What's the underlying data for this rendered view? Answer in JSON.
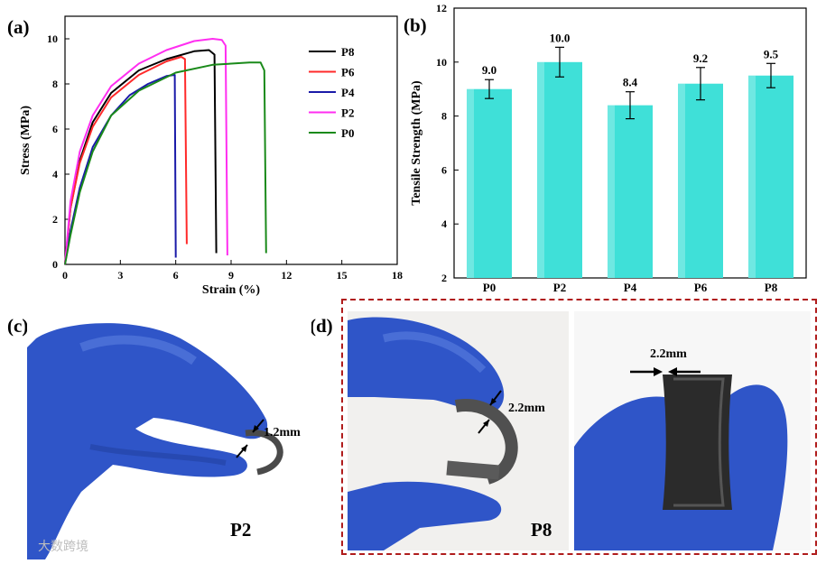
{
  "panels": {
    "a": "(a)",
    "b": "(b)",
    "c": "(c)",
    "d": "(d)"
  },
  "photos": {
    "c": {
      "thickness_label": "1.2mm",
      "sample_label": "P2"
    },
    "d": {
      "thickness_label_left": "2.2mm",
      "thickness_label_right": "2.2mm",
      "sample_label": "P8"
    }
  },
  "watermark": "大数跨境",
  "colors": {
    "P8": "#000000",
    "P6": "#ff2a2a",
    "P4": "#1a1aa8",
    "P2": "#ff2ef0",
    "P0": "#1a8a1a",
    "bar_fill": "#3fe0d8",
    "dashed_border": "#b01c1c",
    "glove": "#2f55c8"
  },
  "chart_data": [
    {
      "type": "line",
      "xlabel": "Strain (%)",
      "ylabel": "Stress (MPa)",
      "xlim": [
        0,
        18
      ],
      "ylim": [
        0,
        11
      ],
      "xticks": [
        0,
        3,
        6,
        9,
        12,
        15,
        18
      ],
      "yticks": [
        0,
        2,
        4,
        6,
        8,
        10
      ],
      "legend_position": "top-right",
      "series": [
        {
          "name": "P8",
          "x": [
            0,
            0.3,
            0.8,
            1.5,
            2.5,
            4,
            5.5,
            7,
            7.8,
            8.1,
            8.2
          ],
          "y": [
            0,
            2.5,
            4.6,
            6.3,
            7.6,
            8.6,
            9.1,
            9.45,
            9.5,
            9.3,
            0.5
          ]
        },
        {
          "name": "P6",
          "x": [
            0,
            0.3,
            0.8,
            1.5,
            2.5,
            4,
            5.5,
            6.3,
            6.5,
            6.6
          ],
          "y": [
            0,
            2.5,
            4.5,
            6.1,
            7.4,
            8.4,
            9.0,
            9.2,
            9.1,
            0.9
          ]
        },
        {
          "name": "P4",
          "x": [
            0,
            0.3,
            0.8,
            1.5,
            2.5,
            3.5,
            4.5,
            5.5,
            5.95,
            6.0
          ],
          "y": [
            0,
            1.5,
            3.4,
            5.2,
            6.6,
            7.5,
            8.0,
            8.35,
            8.4,
            0.3
          ]
        },
        {
          "name": "P2",
          "x": [
            0,
            0.3,
            0.8,
            1.5,
            2.5,
            4,
            5.5,
            7,
            8,
            8.5,
            8.7,
            8.8
          ],
          "y": [
            0,
            2.8,
            5.0,
            6.6,
            7.9,
            8.9,
            9.5,
            9.9,
            10.0,
            9.95,
            9.7,
            0.4
          ]
        },
        {
          "name": "P0",
          "x": [
            0,
            0.3,
            0.8,
            1.5,
            2.5,
            4,
            6,
            8,
            10,
            10.6,
            10.8,
            10.9
          ],
          "y": [
            0,
            1.3,
            3.2,
            5.0,
            6.6,
            7.7,
            8.5,
            8.85,
            8.95,
            8.95,
            8.6,
            0.5
          ]
        }
      ]
    },
    {
      "type": "bar",
      "categories": [
        "P0",
        "P2",
        "P4",
        "P6",
        "P8"
      ],
      "values": [
        9.0,
        10.0,
        8.4,
        9.2,
        9.5
      ],
      "value_labels": [
        "9.0",
        "10.0",
        "8.4",
        "9.2",
        "9.5"
      ],
      "errors": [
        0.35,
        0.55,
        0.5,
        0.6,
        0.45
      ],
      "ylabel": "Tensile Strength (MPa)",
      "xlabel": "",
      "ylim": [
        2,
        12
      ],
      "yticks": [
        2,
        4,
        6,
        8,
        10,
        12
      ]
    }
  ]
}
